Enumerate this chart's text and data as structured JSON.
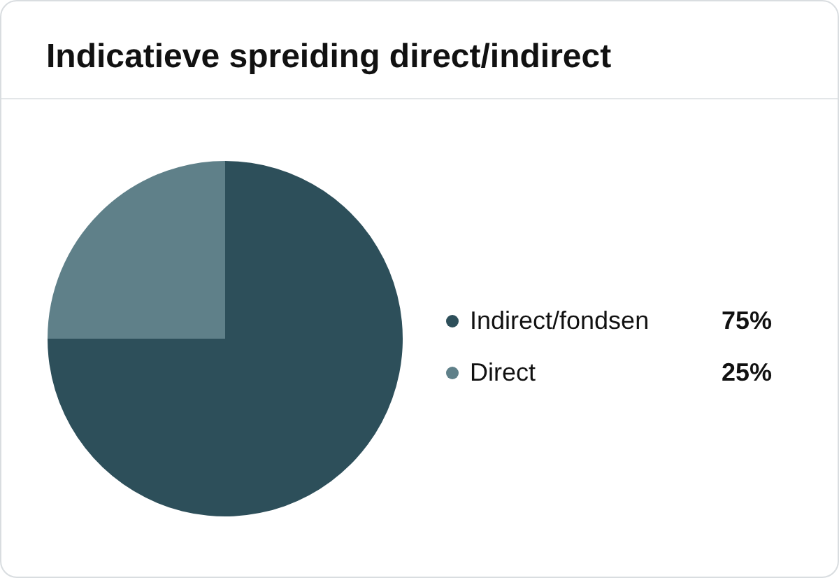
{
  "chart_data": {
    "type": "pie",
    "title": "Indicatieve spreiding direct/indirect",
    "categories": [
      "Indirect/fondsen",
      "Direct"
    ],
    "values": [
      75,
      25
    ],
    "colors": [
      "#2d4f5a",
      "#5f8089"
    ],
    "value_labels": [
      "75%",
      "25%"
    ],
    "legend": "right"
  }
}
